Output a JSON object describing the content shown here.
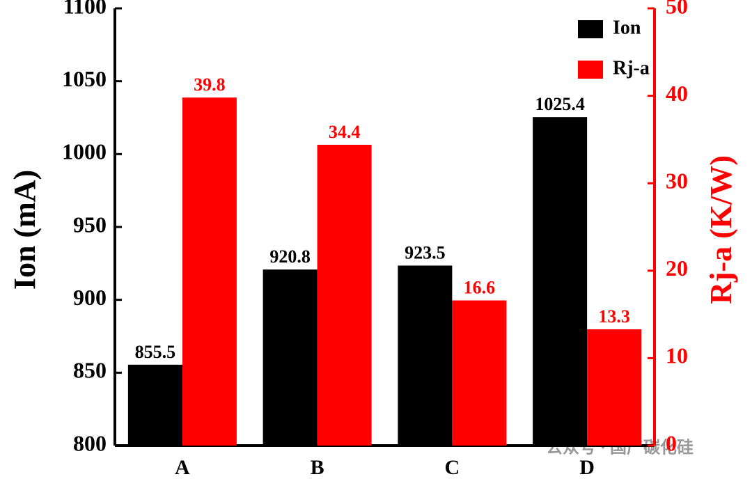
{
  "chart_data": {
    "type": "bar",
    "categories": [
      "A",
      "B",
      "C",
      "D"
    ],
    "y_label": "Ion (mA)",
    "y2_label": "Rj-a (K/W)",
    "ylim": [
      800,
      1100
    ],
    "yticks": [
      800,
      850,
      900,
      950,
      1000,
      1050,
      1100
    ],
    "y2lim": [
      0,
      50
    ],
    "y2ticks": [
      0,
      10,
      20,
      30,
      40,
      50
    ],
    "legend": "upper right",
    "watermark": "公众号 · 国产碳化硅",
    "series": [
      {
        "name": "Ion",
        "color": "#000000",
        "values": [
          855.5,
          920.8,
          923.5,
          1025.4
        ]
      },
      {
        "name": "Rj-a",
        "color": "#ff0000",
        "axis": "y2",
        "values": [
          39.8,
          34.4,
          16.6,
          13.3
        ]
      }
    ]
  }
}
